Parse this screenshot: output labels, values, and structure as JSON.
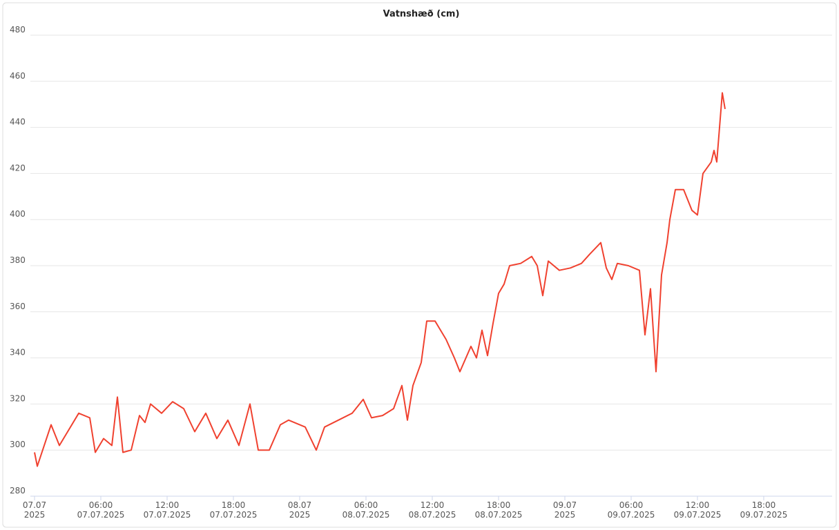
{
  "chart_data": {
    "type": "line",
    "title": "Vatnshæð (cm)",
    "x": [
      "2025-07-07T00:00",
      "2025-07-07T00:15",
      "2025-07-07T01:30",
      "2025-07-07T02:15",
      "2025-07-07T03:00",
      "2025-07-07T04:00",
      "2025-07-07T05:00",
      "2025-07-07T05:30",
      "2025-07-07T06:15",
      "2025-07-07T07:00",
      "2025-07-07T07:30",
      "2025-07-07T08:00",
      "2025-07-07T08:45",
      "2025-07-07T09:30",
      "2025-07-07T10:00",
      "2025-07-07T10:30",
      "2025-07-07T11:30",
      "2025-07-07T12:30",
      "2025-07-07T13:30",
      "2025-07-07T14:30",
      "2025-07-07T15:30",
      "2025-07-07T16:30",
      "2025-07-07T17:30",
      "2025-07-07T18:30",
      "2025-07-07T19:30",
      "2025-07-07T20:15",
      "2025-07-07T21:15",
      "2025-07-07T22:15",
      "2025-07-07T23:00",
      "2025-07-08T00:30",
      "2025-07-08T01:30",
      "2025-07-08T02:15",
      "2025-07-08T03:30",
      "2025-07-08T04:45",
      "2025-07-08T05:45",
      "2025-07-08T06:30",
      "2025-07-08T07:30",
      "2025-07-08T08:30",
      "2025-07-08T09:15",
      "2025-07-08T09:45",
      "2025-07-08T10:15",
      "2025-07-08T11:00",
      "2025-07-08T11:30",
      "2025-07-08T12:15",
      "2025-07-08T13:15",
      "2025-07-08T14:00",
      "2025-07-08T14:30",
      "2025-07-08T15:30",
      "2025-07-08T16:00",
      "2025-07-08T16:30",
      "2025-07-08T17:00",
      "2025-07-08T17:30",
      "2025-07-08T18:00",
      "2025-07-08T18:30",
      "2025-07-08T19:00",
      "2025-07-08T20:00",
      "2025-07-08T21:00",
      "2025-07-08T21:30",
      "2025-07-08T22:00",
      "2025-07-08T22:30",
      "2025-07-08T23:30",
      "2025-07-09T00:30",
      "2025-07-09T01:30",
      "2025-07-09T02:15",
      "2025-07-09T03:15",
      "2025-07-09T03:45",
      "2025-07-09T04:15",
      "2025-07-09T04:45",
      "2025-07-09T05:45",
      "2025-07-09T06:45",
      "2025-07-09T07:15",
      "2025-07-09T07:45",
      "2025-07-09T08:15",
      "2025-07-09T08:45",
      "2025-07-09T09:15",
      "2025-07-09T09:30",
      "2025-07-09T10:00",
      "2025-07-09T10:45",
      "2025-07-09T11:30",
      "2025-07-09T12:00",
      "2025-07-09T12:30",
      "2025-07-09T13:15",
      "2025-07-09T13:30",
      "2025-07-09T13:45",
      "2025-07-09T14:00",
      "2025-07-09T14:15",
      "2025-07-09T14:30"
    ],
    "series": [
      {
        "color": "#f0412f",
        "values": [
          299,
          293,
          311,
          302,
          308,
          316,
          314,
          299,
          305,
          302,
          323,
          299,
          300,
          315,
          312,
          320,
          316,
          321,
          318,
          308,
          316,
          305,
          313,
          302,
          320,
          300,
          300,
          311,
          313,
          310,
          300,
          310,
          313,
          316,
          322,
          314,
          315,
          318,
          328,
          313,
          328,
          338,
          356,
          356,
          348,
          340,
          334,
          345,
          340,
          352,
          341,
          355,
          368,
          372,
          380,
          381,
          384,
          380,
          367,
          382,
          378,
          379,
          381,
          385,
          390,
          379,
          374,
          381,
          380,
          378,
          350,
          370,
          334,
          376,
          390,
          400,
          413,
          413,
          404,
          402,
          420,
          425,
          430,
          425,
          440,
          455,
          448
        ]
      }
    ],
    "xlim": [
      "2025-07-07T00:00",
      "2025-07-10T00:00"
    ],
    "xticks": [
      {
        "value": "2025-07-07T00:00",
        "label": [
          "07.07",
          "2025"
        ]
      },
      {
        "value": "2025-07-07T06:00",
        "label": [
          "06:00",
          "07.07.2025"
        ]
      },
      {
        "value": "2025-07-07T12:00",
        "label": [
          "12:00",
          "07.07.2025"
        ]
      },
      {
        "value": "2025-07-07T18:00",
        "label": [
          "18:00",
          "07.07.2025"
        ]
      },
      {
        "value": "2025-07-08T00:00",
        "label": [
          "08.07",
          "2025"
        ]
      },
      {
        "value": "2025-07-08T06:00",
        "label": [
          "06:00",
          "08.07.2025"
        ]
      },
      {
        "value": "2025-07-08T12:00",
        "label": [
          "12:00",
          "08.07.2025"
        ]
      },
      {
        "value": "2025-07-08T18:00",
        "label": [
          "18:00",
          "08.07.2025"
        ]
      },
      {
        "value": "2025-07-09T00:00",
        "label": [
          "09.07",
          "2025"
        ]
      },
      {
        "value": "2025-07-09T06:00",
        "label": [
          "06:00",
          "09.07.2025"
        ]
      },
      {
        "value": "2025-07-09T12:00",
        "label": [
          "12:00",
          "09.07.2025"
        ]
      },
      {
        "value": "2025-07-09T18:00",
        "label": [
          "18:00",
          "09.07.2025"
        ]
      }
    ],
    "ylim": [
      280,
      480
    ],
    "yticks": [
      280,
      300,
      320,
      340,
      360,
      380,
      400,
      420,
      440,
      460,
      480
    ],
    "grid": true
  }
}
